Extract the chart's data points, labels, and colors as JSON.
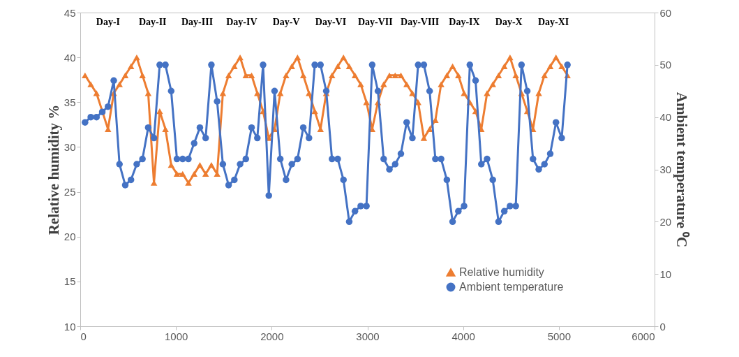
{
  "chart_data": {
    "type": "line",
    "ylabel": "Relative humidity %",
    "y2label": "Ambient temperature ⁰C",
    "x": [
      50,
      110,
      170,
      230,
      290,
      350,
      410,
      470,
      530,
      590,
      650,
      710,
      770,
      830,
      890,
      950,
      1010,
      1070,
      1130,
      1190,
      1250,
      1310,
      1370,
      1430,
      1490,
      1550,
      1610,
      1670,
      1730,
      1790,
      1850,
      1910,
      1970,
      2030,
      2090,
      2150,
      2210,
      2270,
      2330,
      2390,
      2450,
      2510,
      2570,
      2630,
      2690,
      2750,
      2810,
      2870,
      2930,
      2990,
      3050,
      3110,
      3170,
      3230,
      3290,
      3350,
      3410,
      3470,
      3530,
      3590,
      3650,
      3710,
      3770,
      3830,
      3890,
      3950,
      4010,
      4070,
      4130,
      4190,
      4250,
      4310,
      4370,
      4430,
      4490,
      4550,
      4610,
      4670,
      4730,
      4790,
      4850,
      4910,
      4970,
      5030,
      5090
    ],
    "series": [
      {
        "name": "Relative humidity",
        "color": "#ed7d31",
        "marker": "triangle",
        "values": [
          38,
          37,
          36,
          34,
          32,
          36,
          37,
          38,
          39,
          40,
          38,
          36,
          26,
          34,
          32,
          28,
          27,
          27,
          26,
          27,
          28,
          27,
          28,
          27,
          36,
          38,
          39,
          40,
          38,
          38,
          36,
          34,
          31,
          32,
          36,
          38,
          39,
          40,
          38,
          36,
          34,
          32,
          36,
          38,
          39,
          40,
          39,
          38,
          37,
          35,
          32,
          35,
          37,
          38,
          38,
          38,
          37,
          36,
          35,
          31,
          32,
          33,
          37,
          38,
          39,
          38,
          36,
          35,
          34,
          32,
          36,
          37,
          38,
          39,
          40,
          38,
          36,
          34,
          32,
          36,
          38,
          39,
          40,
          39,
          38
        ]
      },
      {
        "name": "Ambient temperature",
        "color": "#4472c4",
        "marker": "circle",
        "axis": "y2",
        "values": [
          39,
          40,
          40,
          41,
          42,
          47,
          31,
          27,
          28,
          31,
          32,
          38,
          36,
          50,
          50,
          45,
          32,
          32,
          32,
          35,
          38,
          36,
          50,
          43,
          31,
          27,
          28,
          31,
          32,
          38,
          36,
          50,
          25,
          45,
          32,
          28,
          31,
          32,
          38,
          36,
          50,
          50,
          45,
          32,
          32,
          28,
          20,
          22,
          23,
          23,
          50,
          45,
          32,
          30,
          31,
          33,
          39,
          36,
          50,
          50,
          45,
          32,
          32,
          28,
          20,
          22,
          23,
          50,
          47,
          31,
          32,
          28,
          20,
          22,
          23,
          23,
          50,
          45,
          32,
          30,
          31,
          33,
          39,
          36,
          50
        ]
      }
    ],
    "xlim": [
      0,
      6000
    ],
    "xticks": [
      0,
      1000,
      2000,
      3000,
      4000,
      5000,
      6000
    ],
    "ylim": [
      10,
      45
    ],
    "yticks": [
      10,
      15,
      20,
      25,
      30,
      35,
      40,
      45
    ],
    "y2lim": [
      0,
      60
    ],
    "y2ticks": [
      0,
      10,
      20,
      30,
      40,
      50,
      60
    ],
    "annotations": [
      "Day-I",
      "Day-II",
      "Day-III",
      "Day-IV",
      "Day-V",
      "Day-VI",
      "Day-VII",
      "Day-VIII",
      "Day-IX",
      "Day-X",
      "Day-XI"
    ],
    "legend": "bottom right",
    "grid": false
  }
}
